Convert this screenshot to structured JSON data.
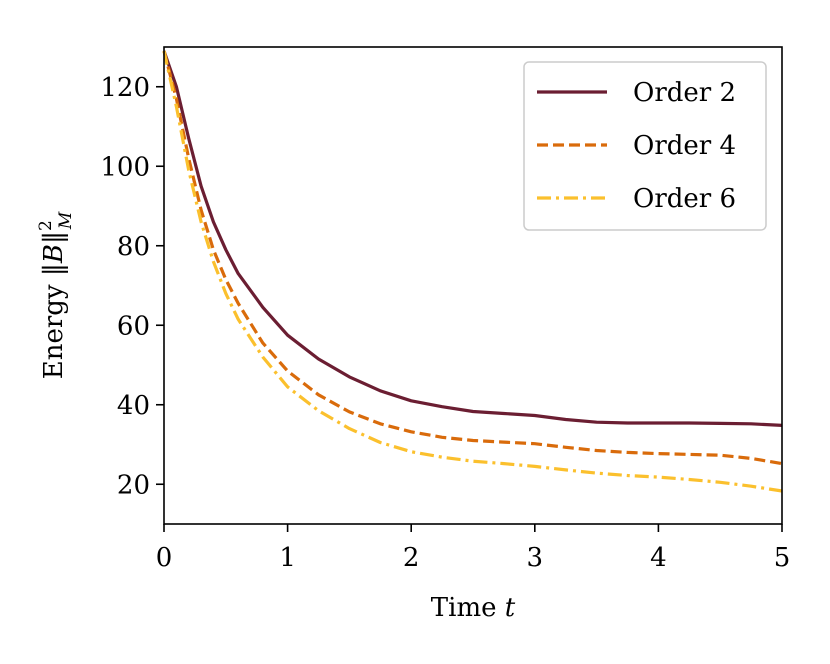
{
  "chart_data": {
    "type": "line",
    "xlabel": "Time t",
    "ylabel": "Energy ‖B‖²_M",
    "xlim": [
      0,
      5
    ],
    "ylim": [
      10,
      130
    ],
    "xticks": [
      0,
      1,
      2,
      3,
      4,
      5
    ],
    "yticks": [
      20,
      40,
      60,
      80,
      100,
      120
    ],
    "grid": false,
    "legend_position": "top-right",
    "series": [
      {
        "name": "Order 2",
        "color": "#6b1e32",
        "dash": "solid",
        "x": [
          0,
          0.1,
          0.2,
          0.3,
          0.4,
          0.5,
          0.6,
          0.8,
          1.0,
          1.25,
          1.5,
          1.75,
          2.0,
          2.25,
          2.5,
          2.75,
          3.0,
          3.25,
          3.5,
          3.75,
          4.0,
          4.25,
          4.5,
          4.75,
          5.0
        ],
        "y": [
          129,
          120,
          107,
          95,
          86,
          79,
          73,
          64.5,
          57.5,
          51.5,
          47,
          43.5,
          41,
          39.5,
          38.3,
          37.8,
          37.3,
          36.3,
          35.6,
          35.4,
          35.4,
          35.4,
          35.3,
          35.2,
          34.8
        ]
      },
      {
        "name": "Order 4",
        "color": "#d96b0b",
        "dash": "dashed",
        "x": [
          0,
          0.1,
          0.2,
          0.3,
          0.4,
          0.5,
          0.6,
          0.8,
          1.0,
          1.25,
          1.5,
          1.75,
          2.0,
          2.25,
          2.5,
          2.75,
          3.0,
          3.25,
          3.5,
          3.75,
          4.0,
          4.25,
          4.5,
          4.75,
          5.0
        ],
        "y": [
          129,
          117,
          102,
          89,
          79,
          71.5,
          65.5,
          55.5,
          48.5,
          42.5,
          38.2,
          35.2,
          33.2,
          31.8,
          31,
          30.6,
          30.2,
          29.3,
          28.5,
          28,
          27.7,
          27.5,
          27.3,
          26.5,
          25.2
        ]
      },
      {
        "name": "Order 6",
        "color": "#fbc02d",
        "dash": "dashdot",
        "x": [
          0,
          0.1,
          0.2,
          0.3,
          0.4,
          0.5,
          0.6,
          0.8,
          1.0,
          1.25,
          1.5,
          1.75,
          2.0,
          2.25,
          2.5,
          2.75,
          3.0,
          3.25,
          3.5,
          3.75,
          4.0,
          4.25,
          4.5,
          4.75,
          5.0
        ],
        "y": [
          129,
          115,
          99,
          86,
          76,
          68,
          61.5,
          52,
          44.5,
          38.5,
          34,
          30.5,
          28.2,
          26.8,
          25.8,
          25.2,
          24.5,
          23.6,
          22.8,
          22.2,
          21.8,
          21.2,
          20.5,
          19.5,
          18.3
        ]
      }
    ]
  }
}
